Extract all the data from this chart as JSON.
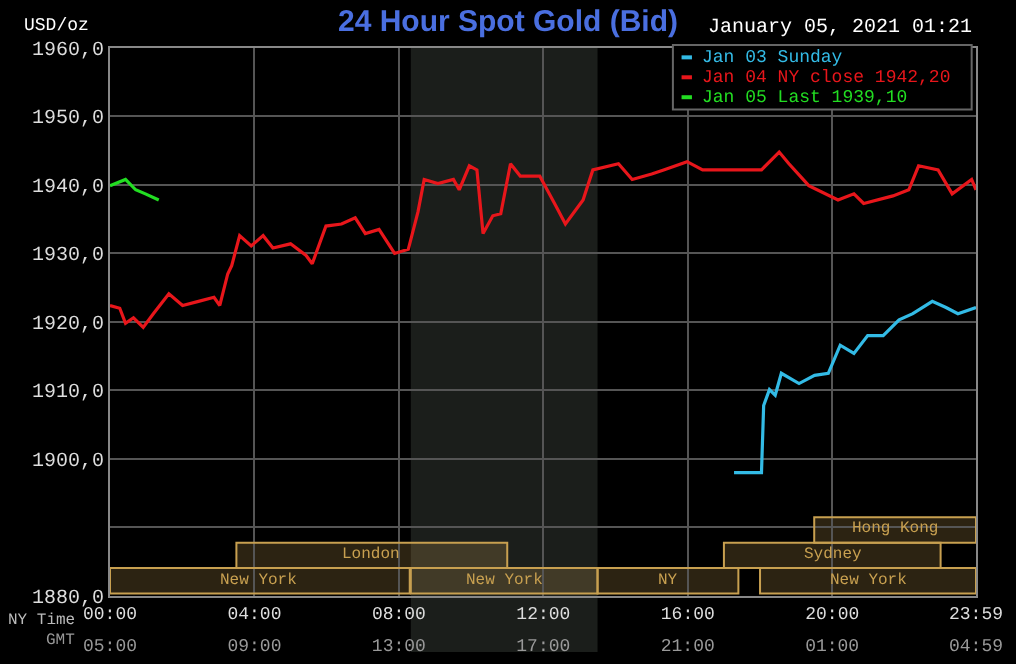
{
  "chart_data": {
    "type": "line",
    "title": "24 Hour Spot Gold (Bid)",
    "ylabel": "USD/oz",
    "annotations": [
      "January 05, 2021 01:21",
      "NY Time",
      "GMT"
    ],
    "series": [
      {
        "name": "Jan 03 Sunday",
        "color": "#33bbe6",
        "x": [
          17.28,
          18.04,
          18.1,
          18.26,
          18.42,
          18.59,
          19.08,
          19.51,
          19.89,
          20.22,
          20.6,
          20.98,
          21.41,
          21.85,
          22.23,
          22.77,
          23.15,
          23.48,
          23.98
        ],
        "values": [
          1898,
          1898,
          1907.8,
          1910.1,
          1909.3,
          1912.5,
          1911,
          1912.2,
          1912.5,
          1916.6,
          1915.4,
          1918,
          1918,
          1920.3,
          1921.2,
          1923,
          1922.1,
          1921.2,
          1922.1
        ]
      },
      {
        "name": "Jan 04 NY close 1942,20",
        "color": "#e8161b",
        "x": [
          0,
          0.27,
          0.43,
          0.65,
          0.92,
          1.2,
          1.63,
          2.01,
          2.45,
          2.88,
          3.04,
          3.26,
          3.37,
          3.59,
          3.91,
          4.24,
          4.51,
          5.0,
          5.43,
          5.6,
          5.98,
          6.41,
          6.79,
          7.07,
          7.45,
          7.88,
          8.26,
          8.53,
          8.7,
          9.08,
          9.51,
          9.67,
          9.95,
          10.16,
          10.33,
          10.6,
          10.82,
          11.09,
          11.36,
          11.9,
          12.34,
          12.61,
          13.1,
          13.37,
          14.08,
          14.46,
          15.0,
          15.33,
          15.98,
          16.41,
          18.04,
          18.53,
          18.8,
          19.35,
          20.16,
          20.6,
          20.87,
          21.68,
          22.12,
          22.39,
          22.93,
          23.32,
          23.86,
          23.98
        ],
        "values": [
          1922.4,
          1922,
          1919.8,
          1920.6,
          1919.2,
          1921.2,
          1924.1,
          1922.4,
          1923,
          1923.6,
          1922.4,
          1927,
          1928.2,
          1932.6,
          1931.1,
          1932.6,
          1930.8,
          1931.4,
          1929.7,
          1928.5,
          1934,
          1934.3,
          1935.2,
          1932.9,
          1933.5,
          1930,
          1930.6,
          1936.1,
          1940.8,
          1940.2,
          1940.8,
          1939.3,
          1942.8,
          1942.2,
          1932.9,
          1935.5,
          1935.8,
          1943.1,
          1941.3,
          1941.3,
          1937,
          1934.3,
          1937.8,
          1942.2,
          1943.1,
          1940.8,
          1941.6,
          1942.2,
          1943.4,
          1942.2,
          1942.2,
          1944.8,
          1943.1,
          1939.9,
          1937.8,
          1938.7,
          1937.3,
          1938.4,
          1939.3,
          1942.8,
          1942.2,
          1938.7,
          1940.8,
          1939.3
        ]
      },
      {
        "name": "Jan 05 Last 1939,10",
        "color": "#22dd22",
        "x": [
          0,
          0.43,
          0.71,
          0.98,
          1.35
        ],
        "values": [
          1939.9,
          1940.8,
          1939.3,
          1938.7,
          1937.8
        ]
      }
    ],
    "xlim": [
      0,
      23.98
    ],
    "xticks": [
      {
        "value": 0,
        "label": "00:00"
      },
      {
        "value": 4,
        "label": "04:00"
      },
      {
        "value": 8,
        "label": "08:00"
      },
      {
        "value": 12,
        "label": "12:00"
      },
      {
        "value": 16,
        "label": "16:00"
      },
      {
        "value": 20,
        "label": "20:00"
      },
      {
        "value": 23.98,
        "label": "23:59"
      }
    ],
    "x2lim": [
      "2021-01-04T05:00",
      "2021-01-05T04:59"
    ],
    "x2ticks": [
      {
        "value": "2021-01-04T05:00",
        "label": "05:00"
      },
      {
        "value": "2021-01-04T09:00",
        "label": "09:00"
      },
      {
        "value": "2021-01-04T13:00",
        "label": "13:00"
      },
      {
        "value": "2021-01-04T17:00",
        "label": "17:00"
      },
      {
        "value": "2021-01-04T21:00",
        "label": "21:00"
      },
      {
        "value": "2021-01-05T01:00",
        "label": "01:00"
      },
      {
        "value": "2021-01-05T04:59",
        "label": "04:59"
      }
    ],
    "ylim": [
      1880,
      1960
    ],
    "yticks": [
      {
        "value": 1880,
        "label": "1880,0"
      },
      {
        "value": 1890,
        "label": null
      },
      {
        "value": 1900,
        "label": "1900,0"
      },
      {
        "value": 1910,
        "label": "1910,0"
      },
      {
        "value": 1920,
        "label": "1920,0"
      },
      {
        "value": 1930,
        "label": "1930,0"
      },
      {
        "value": 1940,
        "label": "1940,0"
      },
      {
        "value": 1950,
        "label": "1950,0"
      },
      {
        "value": 1960,
        "label": "1960,0"
      }
    ],
    "bands": [
      {
        "axis": "x",
        "from": 8.33,
        "to": 13.5,
        "label": null,
        "color": "#1b1e1b"
      },
      {
        "axis": "x",
        "from": 0,
        "to": 8.3,
        "label": "New York",
        "color": "#c8a050"
      },
      {
        "axis": "x",
        "from": 8.33,
        "to": 13.5,
        "label": "New York",
        "color": "#c8a050"
      },
      {
        "axis": "x",
        "from": 13.5,
        "to": 17.4,
        "label": "NY",
        "color": "#c8a050"
      },
      {
        "axis": "x",
        "from": 18,
        "to": 23.98,
        "label": "New York",
        "color": "#c8a050"
      },
      {
        "axis": "x",
        "from": 3.5,
        "to": 11,
        "label": "London",
        "color": "#c8a050"
      },
      {
        "axis": "x",
        "from": 17,
        "to": 23,
        "label": "Sydney",
        "color": "#c8a050"
      },
      {
        "axis": "x",
        "from": 19.5,
        "to": 23.98,
        "label": "Hong Kong",
        "color": "#c8a050"
      }
    ],
    "grid": true,
    "legend": "top right",
    "marker": "none",
    "line_style": "solid"
  }
}
